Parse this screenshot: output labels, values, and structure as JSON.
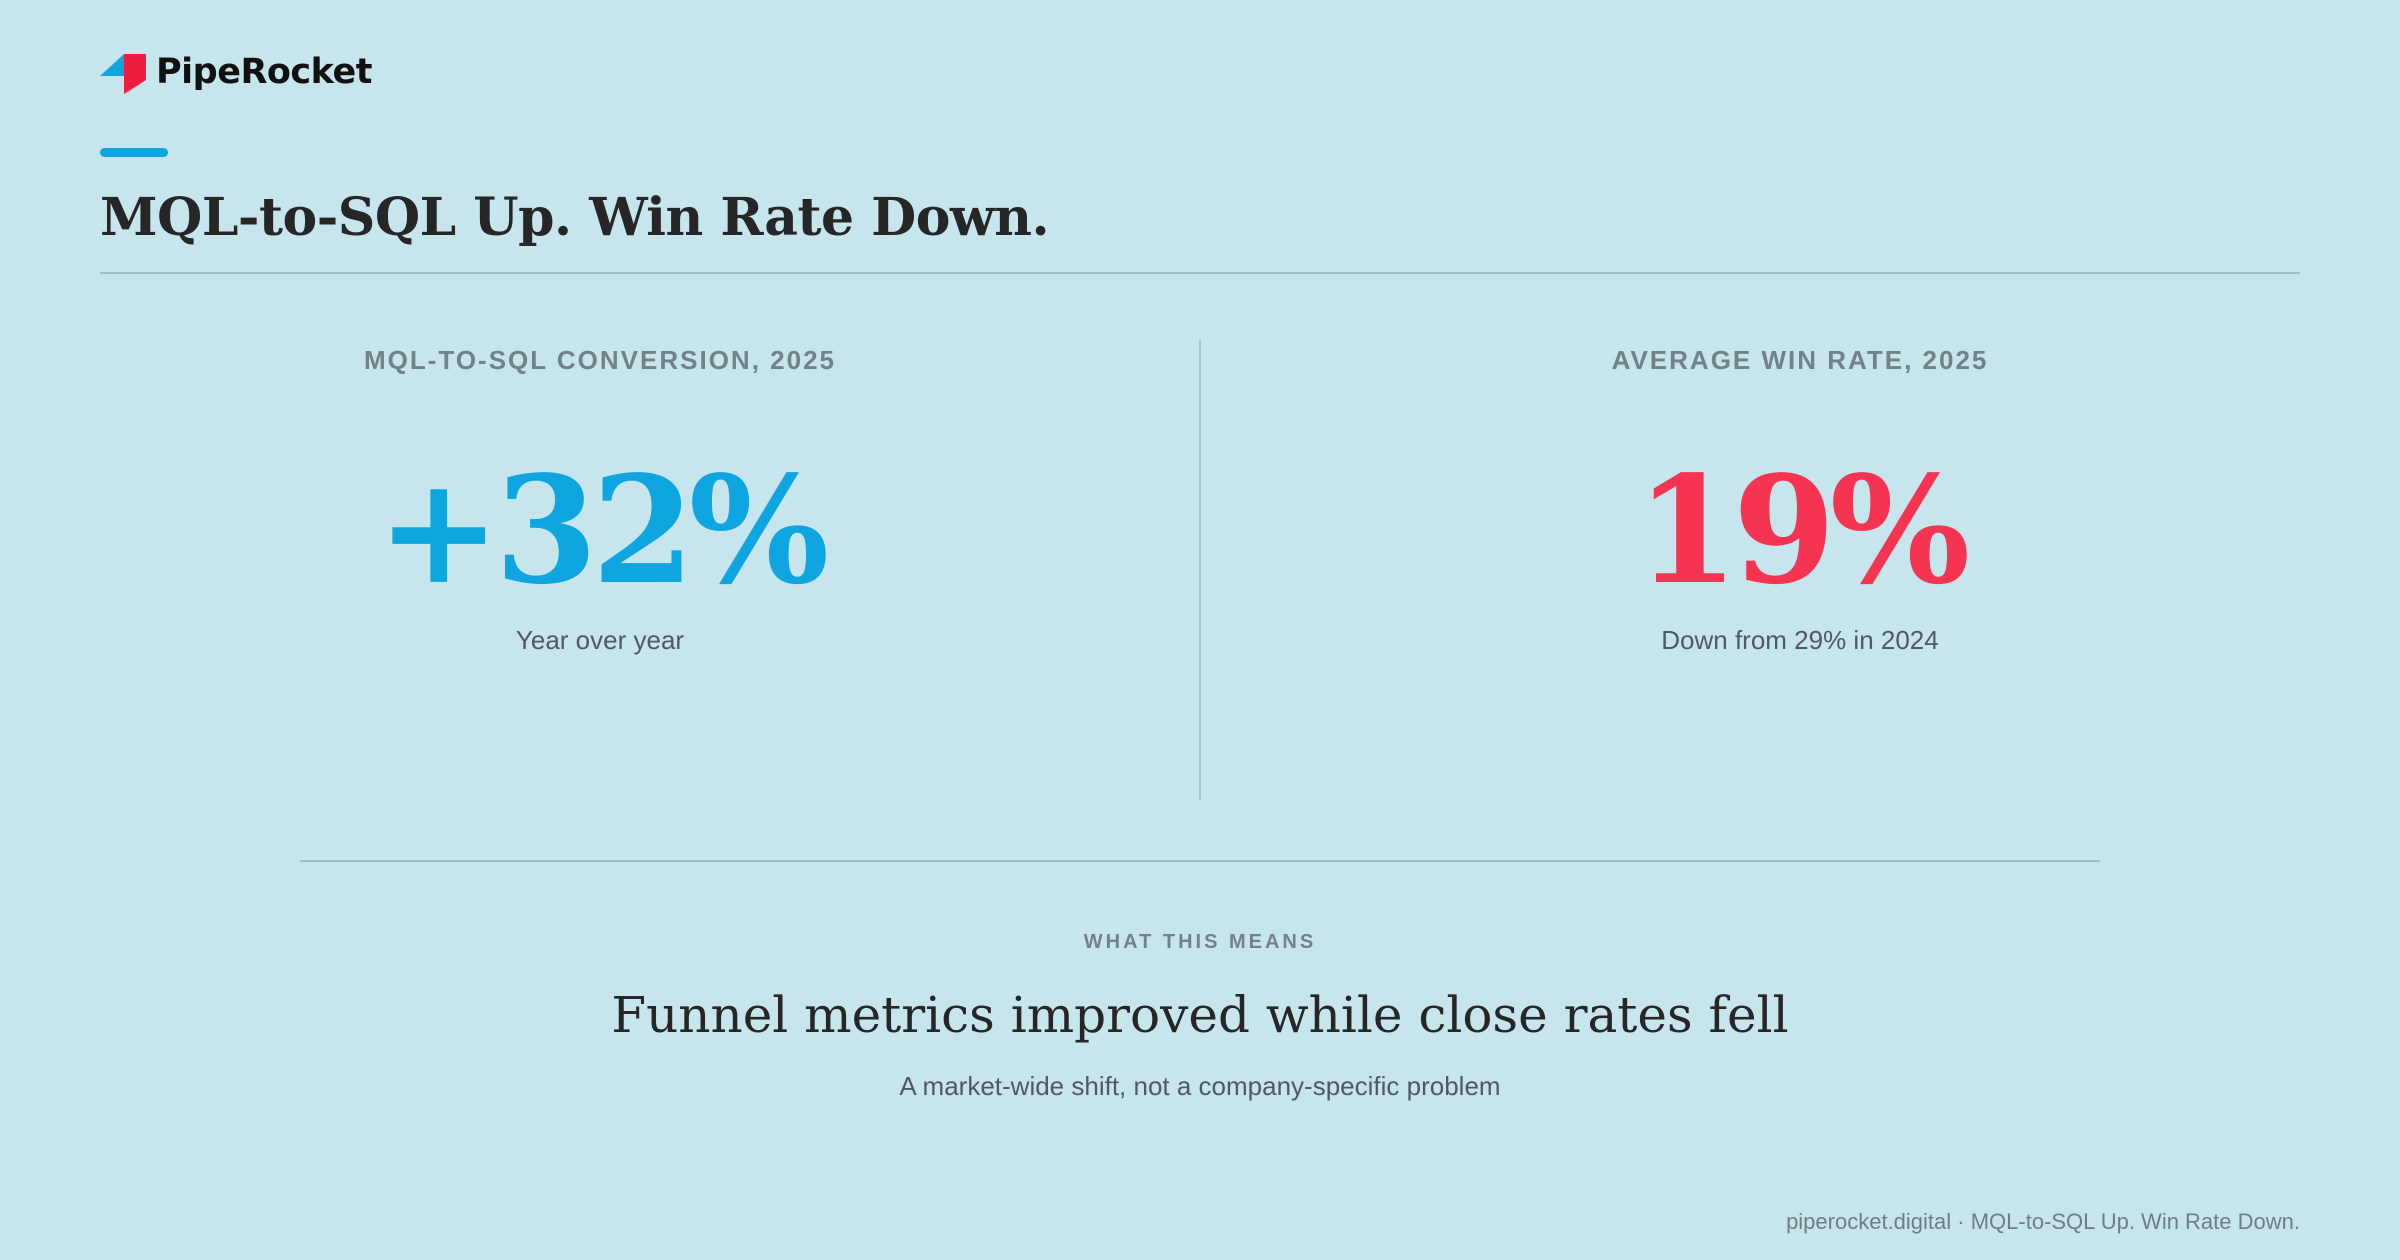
{
  "brand": {
    "name": "PipeRocket",
    "logo_icon": "piperocket-logo-icon",
    "colors": {
      "blue": "#0ea5e0",
      "red": "#f43450",
      "background": "#c7e5ec"
    }
  },
  "headline": "MQL-to-SQL Up. Win Rate Down.",
  "stats": [
    {
      "label": "MQL-TO-SQL CONVERSION, 2025",
      "value": "+32%",
      "caption": "Year over year",
      "color": "#0ea5e0"
    },
    {
      "label": "AVERAGE WIN RATE, 2025",
      "value": "19%",
      "caption": "Down from 29% in 2024",
      "color": "#f43450"
    }
  ],
  "meaning": {
    "label": "WHAT THIS MEANS",
    "title": "Funnel metrics improved while close rates fell",
    "subtitle": "A market-wide shift, not a company-specific problem"
  },
  "footer": "piperocket.digital · MQL-to-SQL Up. Win Rate Down."
}
